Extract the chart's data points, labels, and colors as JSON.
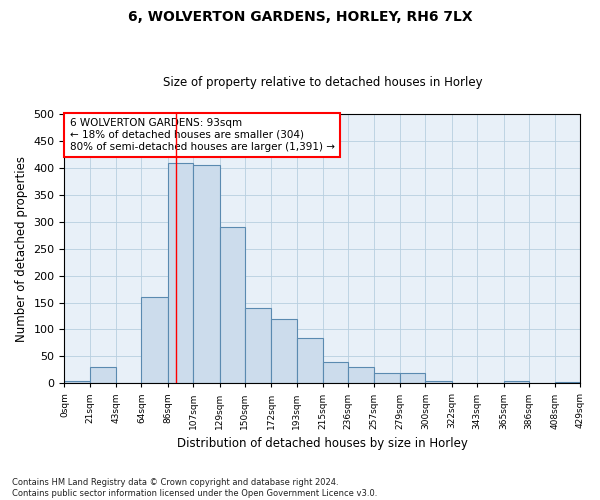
{
  "title1": "6, WOLVERTON GARDENS, HORLEY, RH6 7LX",
  "title2": "Size of property relative to detached houses in Horley",
  "xlabel": "Distribution of detached houses by size in Horley",
  "ylabel": "Number of detached properties",
  "bar_color": "#ccdcec",
  "bar_edge_color": "#5a8ab0",
  "grid_color": "#b8cfe0",
  "bg_color": "#e8f0f8",
  "annotation_text": "6 WOLVERTON GARDENS: 93sqm\n← 18% of detached houses are smaller (304)\n80% of semi-detached houses are larger (1,391) →",
  "vline_value": 93,
  "bins": [
    0,
    21,
    43,
    64,
    86,
    107,
    129,
    150,
    172,
    193,
    215,
    236,
    257,
    279,
    300,
    322,
    343,
    365,
    386,
    408,
    429
  ],
  "counts": [
    5,
    30,
    0,
    160,
    410,
    405,
    290,
    140,
    120,
    85,
    40,
    30,
    20,
    20,
    5,
    0,
    0,
    5,
    0,
    3
  ],
  "footer": "Contains HM Land Registry data © Crown copyright and database right 2024.\nContains public sector information licensed under the Open Government Licence v3.0.",
  "ylim": [
    0,
    500
  ],
  "xlim": [
    0,
    429
  ],
  "tick_labels": [
    "0sqm",
    "21sqm",
    "43sqm",
    "64sqm",
    "86sqm",
    "107sqm",
    "129sqm",
    "150sqm",
    "172sqm",
    "193sqm",
    "215sqm",
    "236sqm",
    "257sqm",
    "279sqm",
    "300sqm",
    "322sqm",
    "343sqm",
    "365sqm",
    "386sqm",
    "408sqm",
    "429sqm"
  ]
}
